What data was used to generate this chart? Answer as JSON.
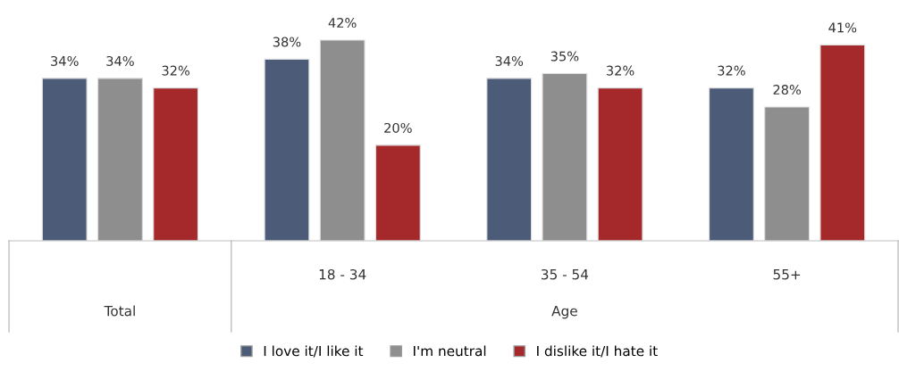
{
  "chart_data": {
    "type": "bar",
    "categories": [
      null,
      "18 - 34",
      "35 - 54",
      "55+"
    ],
    "series": [
      {
        "name": "I love it/I like it",
        "color": "#4b5b78",
        "values": [
          34,
          38,
          34,
          32
        ],
        "value_labels": [
          "34%",
          "38%",
          "34%",
          "32%"
        ]
      },
      {
        "name": "I'm neutral",
        "color": "#8e8e8e",
        "values": [
          34,
          42,
          35,
          28
        ],
        "value_labels": [
          "34%",
          "42%",
          "35%",
          "28%"
        ]
      },
      {
        "name": "I dislike it/I hate it",
        "color": "#a5292a",
        "values": [
          32,
          20,
          32,
          41
        ],
        "value_labels": [
          "32%",
          "20%",
          "32%",
          "41%"
        ]
      }
    ],
    "legend": "bottom",
    "annotations": [
      "Total",
      "Age"
    ]
  }
}
